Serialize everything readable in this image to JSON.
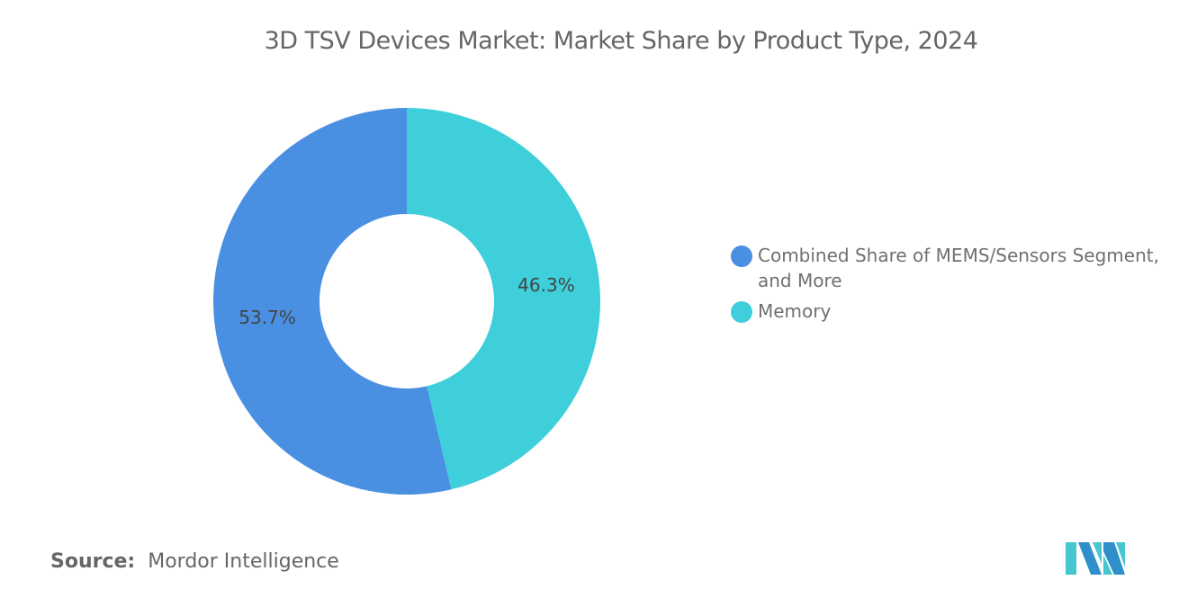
{
  "chart_data": {
    "type": "pie",
    "variant": "donut",
    "title": "3D TSV Devices Market: Market Share by Product Type, 2024",
    "slices": [
      {
        "name": "Memory",
        "value": 46.3,
        "label": "46.3%",
        "color": "#3ECFDB"
      },
      {
        "name": "Combined Share of MEMS/Sensors Segment, and More",
        "value": 53.7,
        "label": "53.7%",
        "color": "#4A90E2"
      }
    ],
    "legend": {
      "placement": "right",
      "items": [
        {
          "label": "Combined Share of MEMS/Sensors Segment, and More",
          "color": "#4A90E2"
        },
        {
          "label": "Memory",
          "color": "#3ECFDB"
        }
      ]
    }
  },
  "source": {
    "label": "Source:",
    "value": "Mordor Intelligence"
  },
  "logo": {
    "text": "Mordor Intelligence logo",
    "colors": [
      "#2E8FCB",
      "#46C6CF"
    ]
  }
}
